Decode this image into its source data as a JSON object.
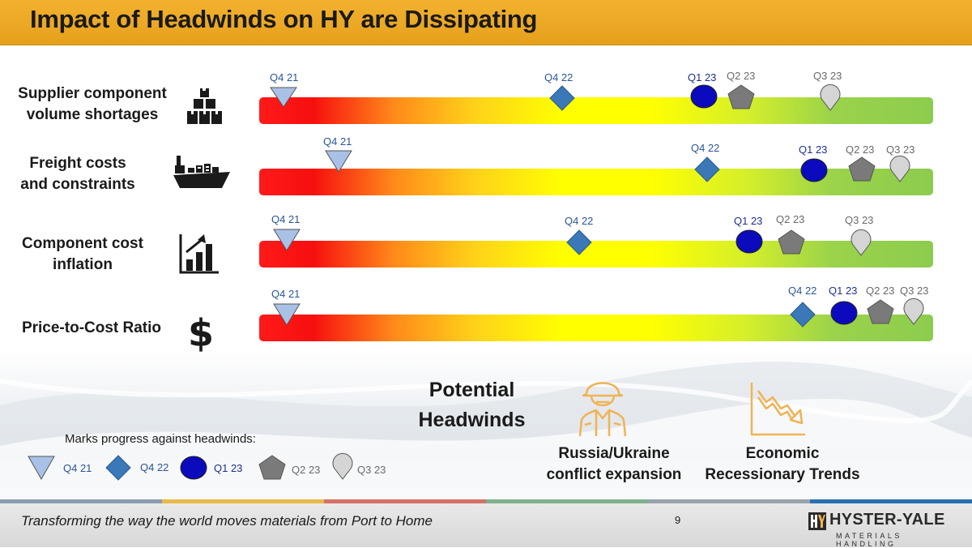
{
  "title": "Impact of Headwinds on HY are Dissipating",
  "rows": [
    {
      "label_lines": [
        "Supplier component",
        "volume shortages"
      ],
      "icon": "boxes-icon"
    },
    {
      "label_lines": [
        "Freight costs",
        "and constraints"
      ],
      "icon": "cargo-ship-icon"
    },
    {
      "label_lines": [
        "Component cost",
        "inflation"
      ],
      "icon": "rising-chart-icon"
    },
    {
      "label_lines": [
        "Price-to-Cost Ratio"
      ],
      "icon": "dollar-icon"
    }
  ],
  "marker_labels": {
    "q4_21": "Q4 21",
    "q4_22": "Q4 22",
    "q1_23": "Q1 23",
    "q2_23": "Q2 23",
    "q3_23": "Q3 23"
  },
  "potential": {
    "title_lines": [
      "Potential",
      "Headwinds"
    ],
    "items": [
      {
        "label_lines": [
          "Russia/Ukraine",
          "conflict expansion"
        ],
        "icon": "soldier-icon"
      },
      {
        "label_lines": [
          "Economic",
          "Recessionary Trends"
        ],
        "icon": "declining-chart-icon"
      }
    ]
  },
  "legend": {
    "title": "Marks progress against headwinds:",
    "items": [
      "Q4 21",
      "Q4 22",
      "Q1 23",
      "Q2 23",
      "Q3 23"
    ]
  },
  "footer": {
    "tagline_part1": "Transforming the way the",
    "tagline_part2": " world moves materials from Port to Home",
    "page_number": "9",
    "logo_text": "HYSTER-YALE",
    "logo_sub": "MATERIALS HANDLING"
  },
  "colors": {
    "header": "#f0ac28",
    "q4_21_marker": "#a9c1e6",
    "q4_22_marker": "#3a78b8",
    "q1_23_marker": "#0b0bbd",
    "q2_23_marker": "#7a7a7a",
    "q3_23_marker": "#d5d5d5",
    "icon_orange": "#f0b354"
  }
}
